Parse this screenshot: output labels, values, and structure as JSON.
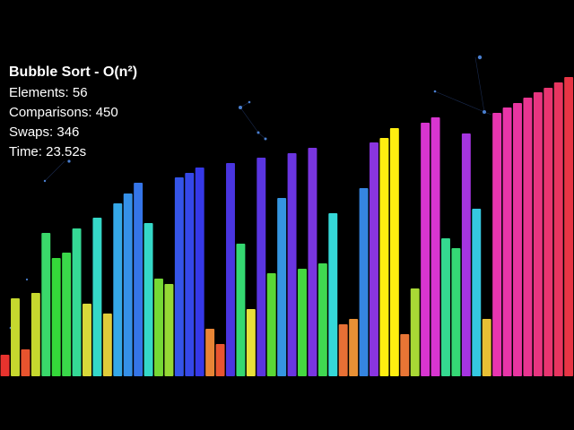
{
  "stats": {
    "title": "Bubble Sort - O(n²)",
    "elements_label": "Elements: ",
    "elements": "56",
    "comparisons_label": "Comparisons: ",
    "comparisons": "450",
    "swaps_label": "Swaps: ",
    "swaps": "346",
    "time_label": "Time: ",
    "time": "23.52s"
  },
  "colors": {
    "background": "#000000",
    "text": "#ffffff",
    "particle": "#4a7fd0"
  },
  "bars": [
    {
      "value": 24,
      "color": "#e8332e"
    },
    {
      "value": 87,
      "color": "#c6d82e"
    },
    {
      "value": 30,
      "color": "#e8532e"
    },
    {
      "value": 93,
      "color": "#c6d82e"
    },
    {
      "value": 160,
      "color": "#3ad86a"
    },
    {
      "value": 132,
      "color": "#35d83a"
    },
    {
      "value": 138,
      "color": "#3ad84a"
    },
    {
      "value": 165,
      "color": "#35d895"
    },
    {
      "value": 81,
      "color": "#d8d83a"
    },
    {
      "value": 177,
      "color": "#35d8c8"
    },
    {
      "value": 70,
      "color": "#e0cc3a"
    },
    {
      "value": 193,
      "color": "#35a8e8"
    },
    {
      "value": 204,
      "color": "#3590e8"
    },
    {
      "value": 216,
      "color": "#3575e8"
    },
    {
      "value": 171,
      "color": "#35d8c8"
    },
    {
      "value": 109,
      "color": "#75d835"
    },
    {
      "value": 103,
      "color": "#95d835"
    },
    {
      "value": 222,
      "color": "#3555e8"
    },
    {
      "value": 227,
      "color": "#3548e8"
    },
    {
      "value": 233,
      "color": "#3538e8"
    },
    {
      "value": 53,
      "color": "#e88535"
    },
    {
      "value": 36,
      "color": "#e85530"
    },
    {
      "value": 238,
      "color": "#4a35e0"
    },
    {
      "value": 148,
      "color": "#35d870"
    },
    {
      "value": 75,
      "color": "#e8e03a"
    },
    {
      "value": 244,
      "color": "#5a35e0"
    },
    {
      "value": 115,
      "color": "#5ad835"
    },
    {
      "value": 199,
      "color": "#3595e0"
    },
    {
      "value": 249,
      "color": "#6a35e0"
    },
    {
      "value": 120,
      "color": "#45d840"
    },
    {
      "value": 255,
      "color": "#7a35e0"
    },
    {
      "value": 126,
      "color": "#40d850"
    },
    {
      "value": 182,
      "color": "#35d8d8"
    },
    {
      "value": 58,
      "color": "#e87035"
    },
    {
      "value": 64,
      "color": "#e89035"
    },
    {
      "value": 210,
      "color": "#3585e0"
    },
    {
      "value": 261,
      "color": "#8a35e0"
    },
    {
      "value": 266,
      "color": "#ffee10"
    },
    {
      "value": 277,
      "color": "#ffee10"
    },
    {
      "value": 47,
      "color": "#e87535"
    },
    {
      "value": 98,
      "color": "#a8d835"
    },
    {
      "value": 283,
      "color": "#d835d0"
    },
    {
      "value": 289,
      "color": "#d835d0"
    },
    {
      "value": 154,
      "color": "#35d890"
    },
    {
      "value": 143,
      "color": "#35d875"
    },
    {
      "value": 271,
      "color": "#a535e0"
    },
    {
      "value": 187,
      "color": "#35c8e0"
    },
    {
      "value": 64,
      "color": "#e8c035"
    },
    {
      "value": 294,
      "color": "#e835b0"
    },
    {
      "value": 300,
      "color": "#e835a8"
    },
    {
      "value": 305,
      "color": "#e835a0"
    },
    {
      "value": 311,
      "color": "#e83590"
    },
    {
      "value": 317,
      "color": "#e83580"
    },
    {
      "value": 322,
      "color": "#e83570"
    },
    {
      "value": 328,
      "color": "#e83560"
    },
    {
      "value": 334,
      "color": "#e83545"
    }
  ]
}
